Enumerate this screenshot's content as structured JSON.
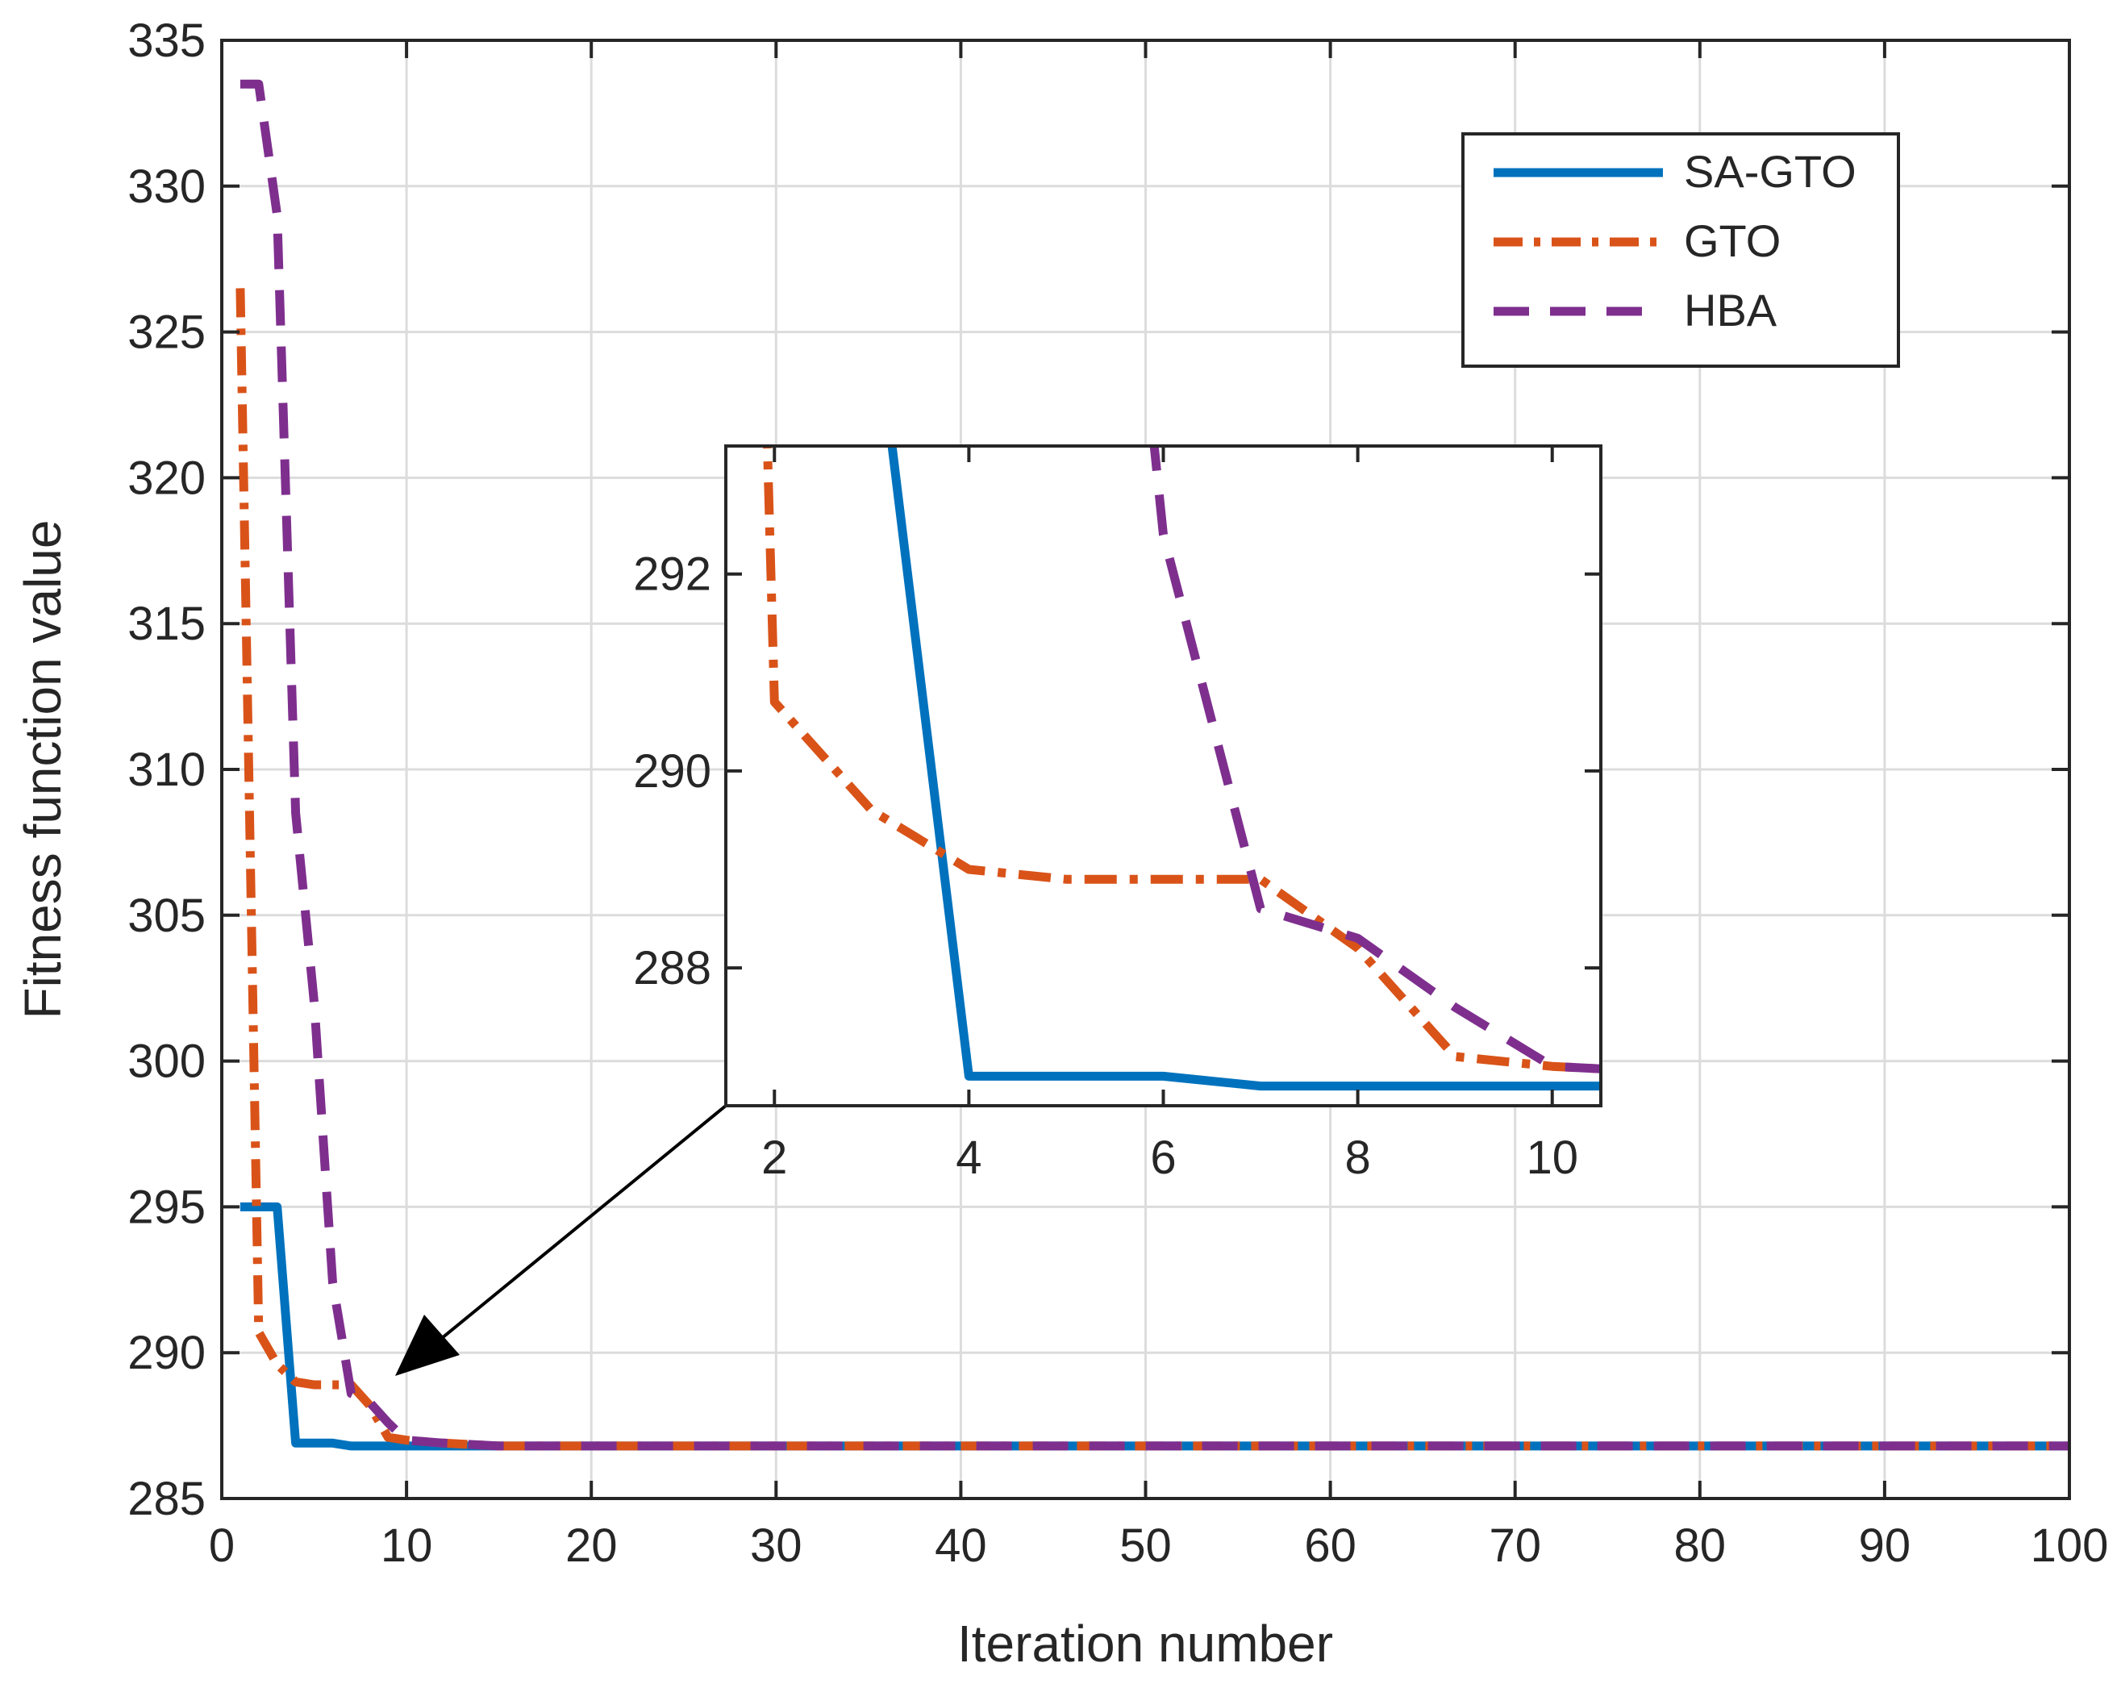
{
  "chart_data": [
    {
      "id": "main",
      "type": "line",
      "xlabel": "Iteration number",
      "ylabel": "Fitness function value",
      "xlim": [
        0,
        100
      ],
      "ylim": [
        285,
        335
      ],
      "xticks": [
        "0",
        "10",
        "20",
        "30",
        "40",
        "50",
        "60",
        "70",
        "80",
        "90",
        "100"
      ],
      "yticks": [
        "285",
        "290",
        "295",
        "300",
        "305",
        "310",
        "315",
        "320",
        "325",
        "330",
        "335"
      ],
      "grid": true,
      "legend": {
        "placement": "top-right",
        "entries": [
          "SA-GTO",
          "GTO",
          "HBA"
        ]
      },
      "series": [
        {
          "name": "SA-GTO",
          "color": "#0072BD",
          "style": "solid",
          "x": [
            1,
            2,
            3,
            4,
            5,
            6,
            7,
            8,
            9,
            10,
            12,
            15,
            20,
            100
          ],
          "y": [
            295,
            295,
            295,
            286.9,
            286.9,
            286.9,
            286.8,
            286.8,
            286.8,
            286.8,
            286.8,
            286.8,
            286.8,
            286.8
          ]
        },
        {
          "name": "GTO",
          "color": "#D95319",
          "style": "dashdot",
          "x": [
            1,
            2,
            3,
            4,
            5,
            6,
            7,
            8,
            9,
            10,
            12,
            15,
            20,
            100
          ],
          "y": [
            326.5,
            290.7,
            289.6,
            289.0,
            288.9,
            288.9,
            288.9,
            288.2,
            287.1,
            287.0,
            286.9,
            286.8,
            286.8,
            286.8
          ]
        },
        {
          "name": "HBA",
          "color": "#7E2F8E",
          "style": "dashed",
          "x": [
            1,
            2,
            3,
            4,
            5,
            6,
            7,
            8,
            9,
            10,
            12,
            15,
            20,
            100
          ],
          "y": [
            333.5,
            333.5,
            329,
            308.5,
            302,
            292.4,
            288.6,
            288.3,
            287.6,
            287.0,
            286.9,
            286.8,
            286.8,
            286.8
          ]
        }
      ]
    },
    {
      "id": "inset",
      "type": "line",
      "title": "",
      "xlim": [
        1.5,
        10.5
      ],
      "ylim": [
        286.6,
        293.3
      ],
      "xticks": [
        "2",
        "4",
        "6",
        "8",
        "10"
      ],
      "yticks": [
        "288",
        "290",
        "292"
      ],
      "grid": false,
      "series_ref": "main",
      "annotation": "arrow pointing from inset to main-plot region near iteration 10"
    }
  ]
}
